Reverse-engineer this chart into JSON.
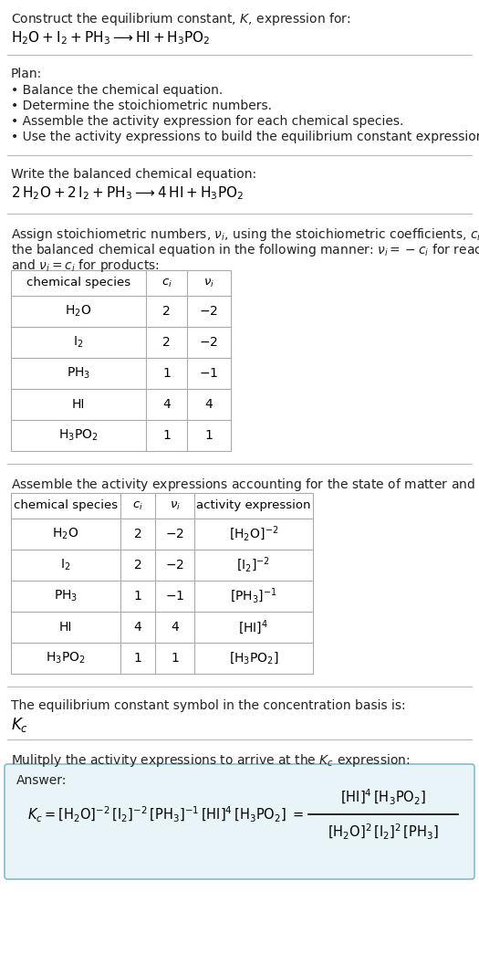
{
  "title_line1": "Construct the equilibrium constant, $K$, expression for:",
  "plan_header": "Plan:",
  "plan_items": [
    "Balance the chemical equation.",
    "Determine the stoichiometric numbers.",
    "Assemble the activity expression for each chemical species.",
    "Use the activity expressions to build the equilibrium constant expression."
  ],
  "balanced_header": "Write the balanced chemical equation:",
  "table1_cols": [
    "chemical species",
    "$c_i$",
    "$\\nu_i$"
  ],
  "table1_rows": [
    [
      "$\\mathrm{H_2O}$",
      "2",
      "$-2$"
    ],
    [
      "$\\mathrm{I_2}$",
      "2",
      "$-2$"
    ],
    [
      "$\\mathrm{PH_3}$",
      "1",
      "$-1$"
    ],
    [
      "HI",
      "4",
      "4"
    ],
    [
      "$\\mathrm{H_3PO_2}$",
      "1",
      "1"
    ]
  ],
  "table2_cols": [
    "chemical species",
    "$c_i$",
    "$\\nu_i$",
    "activity expression"
  ],
  "table2_rows": [
    [
      "$\\mathrm{H_2O}$",
      "2",
      "$-2$",
      "$[\\mathrm{H_2O}]^{-2}$"
    ],
    [
      "$\\mathrm{I_2}$",
      "2",
      "$-2$",
      "$[\\mathrm{I_2}]^{-2}$"
    ],
    [
      "$\\mathrm{PH_3}$",
      "1",
      "$-1$",
      "$[\\mathrm{PH_3}]^{-1}$"
    ],
    [
      "HI",
      "4",
      "4",
      "$[\\mathrm{HI}]^4$"
    ],
    [
      "$\\mathrm{H_3PO_2}$",
      "1",
      "1",
      "$[\\mathrm{H_3PO_2}]$"
    ]
  ],
  "kc_header": "The equilibrium constant symbol in the concentration basis is:",
  "multiply_header": "Mulitply the activity expressions to arrive at the $K_c$ expression:",
  "bg_color": "#ffffff",
  "answer_box_color": "#e8f4f8",
  "answer_box_border": "#88bbcc",
  "table_border_color": "#aaaaaa",
  "text_color": "#222222",
  "separator_color": "#bbbbbb",
  "font_size": 10.0
}
